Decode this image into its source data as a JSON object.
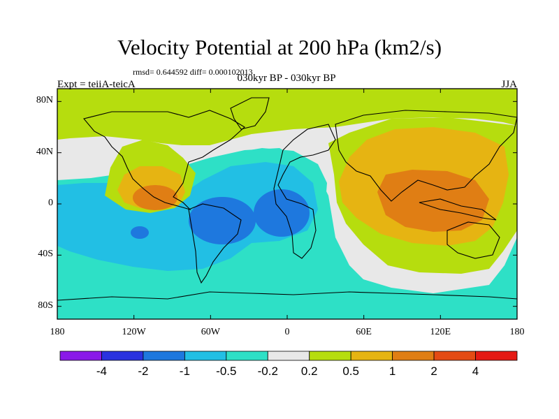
{
  "title": "Velocity Potential at 200 hPa (km2/s)",
  "stats": "rmsd= 0.644592 diff= 0.000102013",
  "experiment": "Expt = teiiA-teicA",
  "period": "030kyr BP - 030kyr BP",
  "season": "JJA",
  "lat_ticks": [
    {
      "label": "80N",
      "value": 80
    },
    {
      "label": "40N",
      "value": 40
    },
    {
      "label": "0",
      "value": 0
    },
    {
      "label": "40S",
      "value": -40
    },
    {
      "label": "80S",
      "value": -80
    }
  ],
  "lon_ticks": [
    {
      "label": "180",
      "value": -180
    },
    {
      "label": "120W",
      "value": -120
    },
    {
      "label": "60W",
      "value": -60
    },
    {
      "label": "0",
      "value": 0
    },
    {
      "label": "60E",
      "value": 60
    },
    {
      "label": "120E",
      "value": 120
    },
    {
      "label": "180",
      "value": 180
    }
  ],
  "colorbar": {
    "colors": [
      "#8a1ae8",
      "#2a32df",
      "#1e78de",
      "#22bfe4",
      "#2ee0c6",
      "#e8e8e8",
      "#b6dd0e",
      "#e6b412",
      "#e07e14",
      "#e44b14",
      "#e51a14"
    ],
    "labels": [
      "-4",
      "-2",
      "-1",
      "-0.5",
      "-0.2",
      "0.2",
      "0.5",
      "1",
      "2",
      "4"
    ]
  }
}
